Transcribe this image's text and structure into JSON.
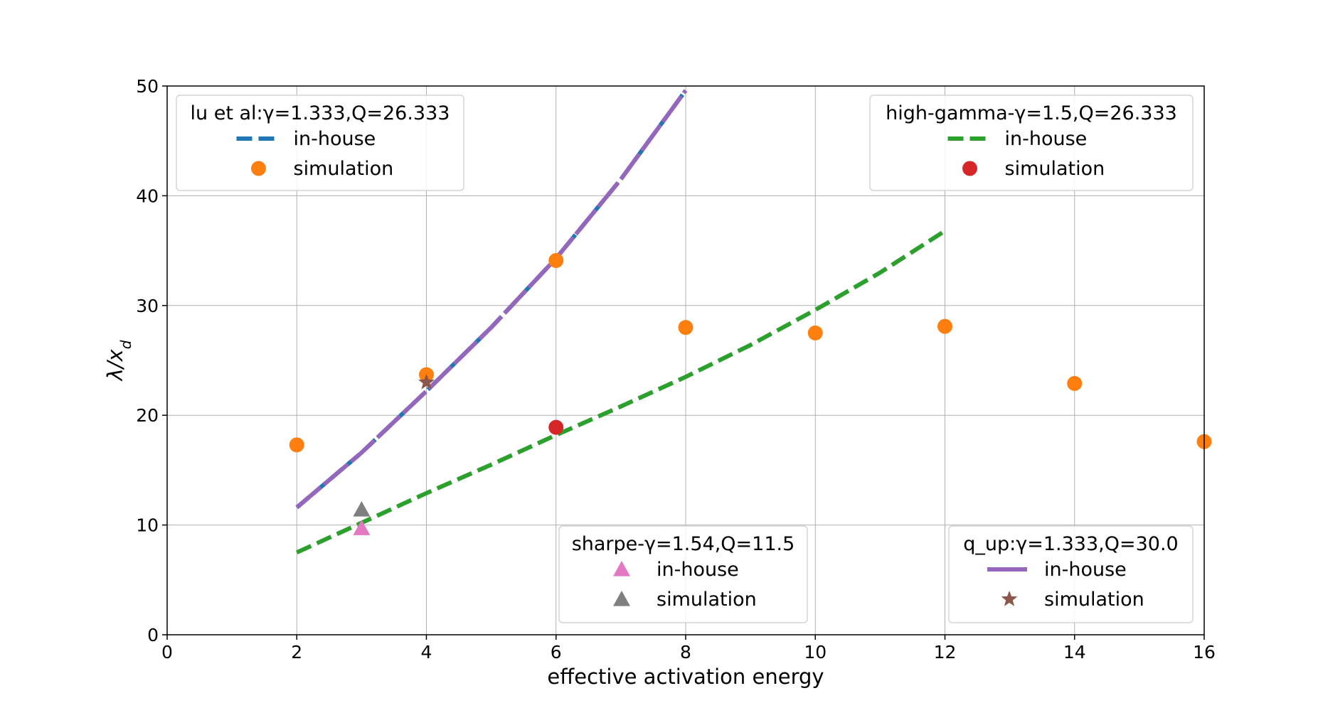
{
  "chart_data": {
    "type": "scatter",
    "xlabel": "effective activation energy",
    "ylabel": "λ/x_d",
    "xlim": [
      0,
      16
    ],
    "ylim": [
      0,
      50
    ],
    "xticks": [
      "0",
      "2",
      "4",
      "6",
      "8",
      "10",
      "12",
      "14",
      "16"
    ],
    "yticks": [
      "0",
      "10",
      "20",
      "30",
      "40",
      "50"
    ],
    "grid": true,
    "groups": [
      {
        "title": "lu et al:γ=1.333,Q=26.333",
        "legend_position": "top-left",
        "line": {
          "label": "in-house",
          "style": "dashed",
          "color": "#1f77b4",
          "x": [
            2,
            3,
            4,
            5,
            6,
            7,
            8
          ],
          "y": [
            11.6,
            16.6,
            22.2,
            28.0,
            34.3,
            41.5,
            49.6
          ]
        },
        "points": {
          "label": "simulation",
          "marker": "circle",
          "color": "#ff7f0e",
          "x": [
            2,
            4,
            6,
            8,
            10,
            12,
            14,
            16
          ],
          "y": [
            17.3,
            23.7,
            34.1,
            28.0,
            27.5,
            28.1,
            22.9,
            17.6
          ]
        }
      },
      {
        "title": "high-gamma-γ=1.5,Q=26.333",
        "legend_position": "top-right",
        "line": {
          "label": "in-house",
          "style": "dashed",
          "color": "#2ca02c",
          "x": [
            2,
            3,
            4,
            5,
            6,
            7,
            8,
            9,
            10,
            11,
            12
          ],
          "y": [
            7.5,
            10.2,
            12.9,
            15.5,
            18.2,
            20.8,
            23.5,
            26.4,
            29.6,
            33.0,
            36.8
          ]
        },
        "points": {
          "label": "simulation",
          "marker": "circle",
          "color": "#d62728",
          "x": [
            6
          ],
          "y": [
            18.9
          ]
        }
      },
      {
        "title": "sharpe-γ=1.54,Q=11.5",
        "legend_position": "lower-center",
        "line": {
          "label": "in-house",
          "marker": "triangle",
          "color": "#e377c2",
          "x": [
            3
          ],
          "y": [
            9.7
          ]
        },
        "points": {
          "label": "simulation",
          "marker": "triangle",
          "color": "#7f7f7f",
          "x": [
            3
          ],
          "y": [
            11.4
          ]
        }
      },
      {
        "title": "q_up:γ=1.333,Q=30.0",
        "legend_position": "lower-right",
        "line": {
          "label": "in-house",
          "style": "dashed",
          "color": "#9467bd",
          "x": [
            2,
            3,
            4,
            5,
            6,
            7,
            8
          ],
          "y": [
            11.6,
            16.6,
            22.2,
            28.0,
            34.3,
            41.5,
            49.6
          ]
        },
        "points": {
          "label": "simulation",
          "marker": "star",
          "color": "#8c564b",
          "x": [
            4
          ],
          "y": [
            23.0
          ]
        }
      }
    ]
  }
}
